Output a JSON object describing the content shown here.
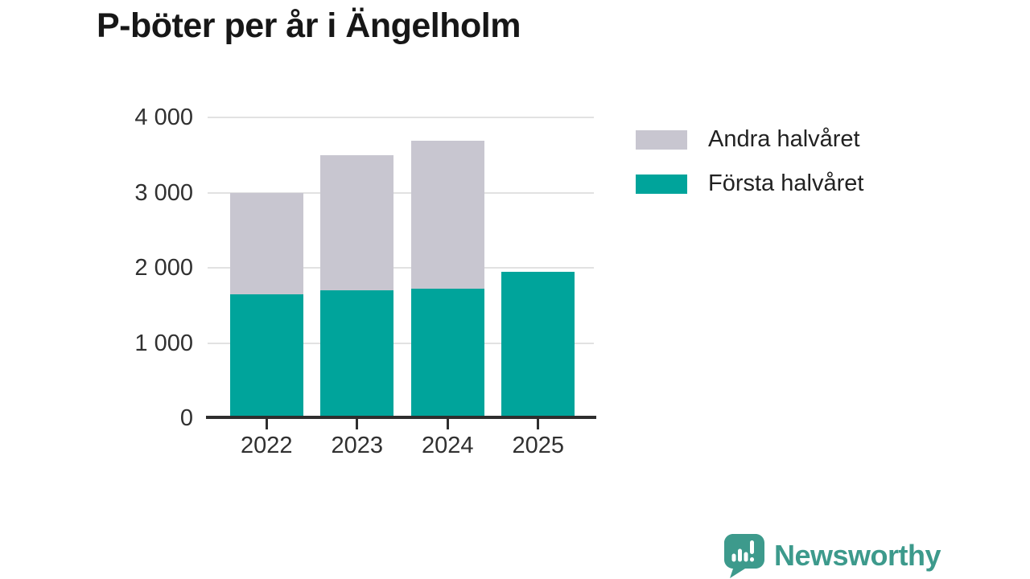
{
  "header": {
    "title": "P-böter per år i Ängelholm"
  },
  "chart_data": {
    "type": "bar",
    "stacked": true,
    "title": "P-böter per år i Ängelholm",
    "categories": [
      "2022",
      "2023",
      "2024",
      "2025"
    ],
    "series": [
      {
        "name": "Första halvåret",
        "color": "#00a49b",
        "values": [
          1650,
          1700,
          1720,
          1950
        ]
      },
      {
        "name": "Andra halvåret",
        "color": "#c8c6d0",
        "values": [
          1350,
          1800,
          1970,
          null
        ]
      }
    ],
    "ylim": [
      0,
      4000
    ],
    "yticks": [
      0,
      1000,
      2000,
      3000,
      4000
    ],
    "ytick_labels": [
      "0",
      "1 000",
      "2 000",
      "3 000",
      "4 000"
    ],
    "xlabel": "",
    "ylabel": "",
    "grid": true,
    "legend_position": "right"
  },
  "legend": {
    "items": [
      {
        "label": "Andra halvåret",
        "color": "#c8c6d0"
      },
      {
        "label": "Första halvåret",
        "color": "#00a49b"
      }
    ]
  },
  "branding": {
    "name": "Newsworthy",
    "color": "#3d9a8c",
    "icon": "newsworthy-bubble-chart-icon"
  },
  "style": {
    "axis_color": "#2e2e2e",
    "grid_color": "#e2e2e2",
    "label_color": "#303030",
    "title_color": "#171717",
    "background": "#ffffff"
  }
}
